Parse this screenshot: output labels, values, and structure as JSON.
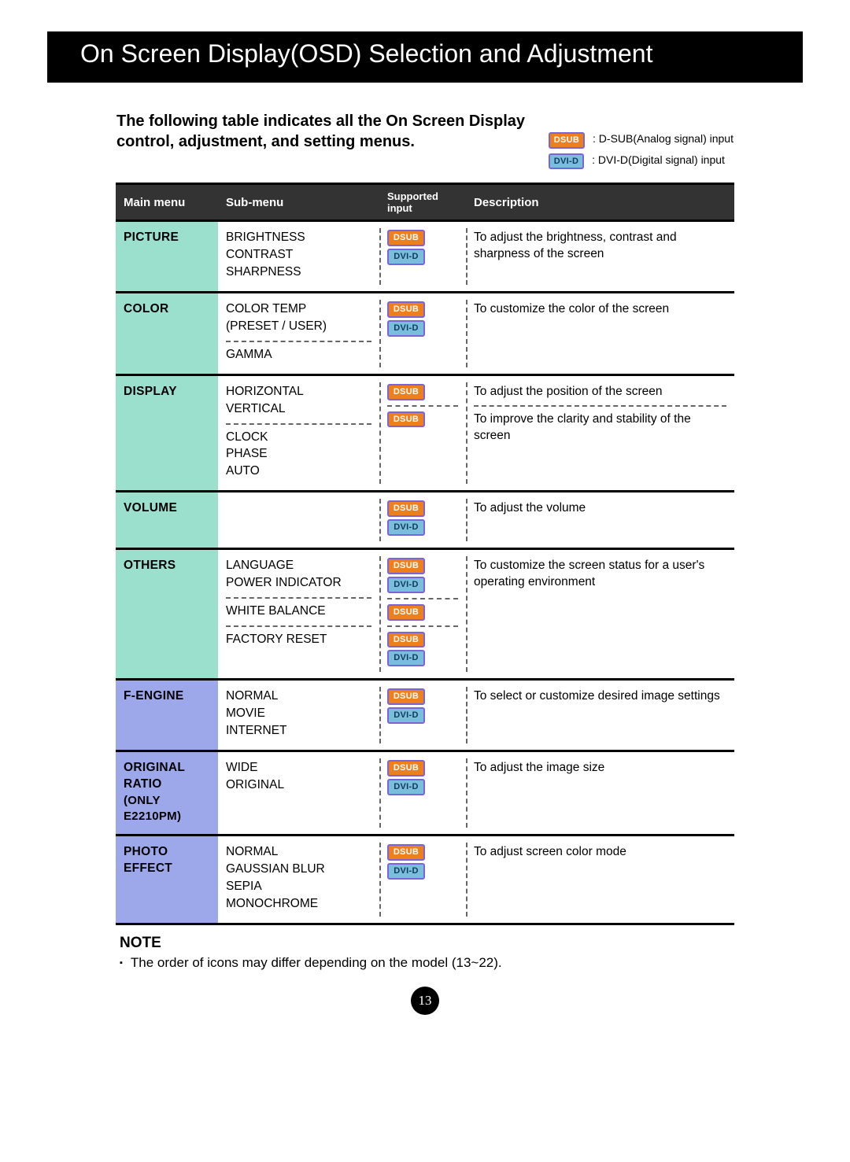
{
  "page_title": "On Screen Display(OSD) Selection and Adjustment",
  "intro_text": "The following table indicates all the On Screen Display control, adjustment, and setting menus.",
  "legend": {
    "dsub_badge": "DSUB",
    "dsub_text": ": D-SUB(Analog signal) input",
    "dvid_badge": "DVI-D",
    "dvid_text": ": DVI-D(Digital signal) input"
  },
  "table": {
    "headers": {
      "main": "Main menu",
      "sub": "Sub-menu",
      "input": "Supported input",
      "desc": "Description"
    },
    "colors": {
      "green": "#9ae0cd",
      "blue": "#9da8eb",
      "header_bg": "#333333",
      "badge_dsub_bg": "#ee7f1d",
      "badge_dvid_bg": "#7abedd",
      "badge_border": "#7b63d8"
    },
    "rows": [
      {
        "main": "PICTURE",
        "main_sub": "",
        "color": "green",
        "sub_blocks": [
          {
            "items": [
              "BRIGHTNESS",
              "CONTRAST",
              "SHARPNESS"
            ]
          }
        ],
        "input_blocks": [
          {
            "badges": [
              "DSUB",
              "DVI-D"
            ]
          }
        ],
        "desc_blocks": [
          {
            "text": "To adjust the brightness, contrast and sharpness of the screen"
          }
        ]
      },
      {
        "main": "COLOR",
        "main_sub": "",
        "color": "green",
        "sub_blocks": [
          {
            "items": [
              "COLOR TEMP",
              " (PRESET / USER)"
            ]
          },
          {
            "items": [
              "GAMMA"
            ]
          }
        ],
        "input_blocks": [
          {
            "badges": [
              "DSUB",
              "DVI-D"
            ]
          }
        ],
        "desc_blocks": [
          {
            "text": "To customize the color of the screen"
          }
        ]
      },
      {
        "main": "DISPLAY",
        "main_sub": "",
        "color": "green",
        "sub_blocks": [
          {
            "items": [
              "HORIZONTAL",
              "VERTICAL"
            ]
          },
          {
            "items": [
              "CLOCK",
              "PHASE",
              "AUTO"
            ]
          }
        ],
        "input_blocks": [
          {
            "badges": [
              "DSUB"
            ]
          },
          {
            "badges": [
              "DSUB"
            ]
          }
        ],
        "desc_blocks": [
          {
            "text": "To adjust the position of the screen"
          },
          {
            "text": "To improve the clarity and stability of the screen"
          }
        ]
      },
      {
        "main": "VOLUME",
        "main_sub": "",
        "color": "green",
        "sub_blocks": [
          {
            "items": [
              ""
            ]
          }
        ],
        "input_blocks": [
          {
            "badges": [
              "DSUB",
              "DVI-D"
            ]
          }
        ],
        "desc_blocks": [
          {
            "text": "To adjust the volume"
          }
        ]
      },
      {
        "main": "OTHERS",
        "main_sub": "",
        "color": "green",
        "sub_blocks": [
          {
            "items": [
              "LANGUAGE",
              "POWER INDICATOR"
            ]
          },
          {
            "items": [
              "WHITE BALANCE"
            ]
          },
          {
            "items": [
              "FACTORY RESET"
            ]
          }
        ],
        "input_blocks": [
          {
            "badges": [
              "DSUB",
              "DVI-D"
            ]
          },
          {
            "badges": [
              "DSUB"
            ]
          },
          {
            "badges": [
              "DSUB",
              "DVI-D"
            ]
          }
        ],
        "desc_blocks": [
          {
            "text": "To customize the screen status for a user's operating environment"
          }
        ]
      },
      {
        "main": "F-ENGINE",
        "main_sub": "",
        "color": "blue",
        "sub_blocks": [
          {
            "items": [
              "NORMAL",
              "MOVIE",
              "INTERNET"
            ]
          }
        ],
        "input_blocks": [
          {
            "badges": [
              "DSUB",
              "DVI-D"
            ]
          }
        ],
        "desc_blocks": [
          {
            "text": "To select or customize desired image settings"
          }
        ]
      },
      {
        "main": "ORIGINAL RATIO",
        "main_sub": "(Only E2210PM)",
        "color": "blue",
        "sub_blocks": [
          {
            "items": [
              "WIDE",
              "ORIGINAL"
            ]
          }
        ],
        "input_blocks": [
          {
            "badges": [
              "DSUB",
              "DVI-D"
            ]
          }
        ],
        "desc_blocks": [
          {
            "text": "To adjust the image size"
          }
        ]
      },
      {
        "main": "PHOTO EFFECT",
        "main_sub": "",
        "color": "blue",
        "sub_blocks": [
          {
            "items": [
              "NORMAL",
              "GAUSSIAN BLUR",
              "SEPIA",
              "MONOCHROME"
            ]
          }
        ],
        "input_blocks": [
          {
            "badges": [
              "DSUB",
              "DVI-D"
            ]
          }
        ],
        "desc_blocks": [
          {
            "text": "To adjust screen color mode"
          }
        ]
      }
    ]
  },
  "note": {
    "heading": "NOTE",
    "bullets": [
      "The order of icons may differ depending on the model (13~22)."
    ]
  },
  "page_number": "13"
}
